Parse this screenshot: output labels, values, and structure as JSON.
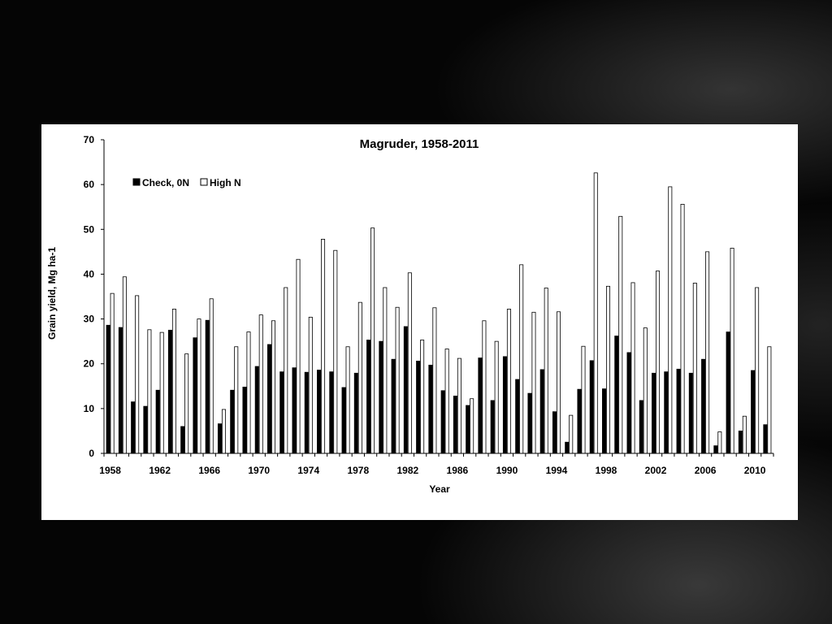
{
  "colors": {
    "background": "#000000",
    "card": "#ffffff",
    "check_fill": "#000000",
    "highn_fill": "#ffffff",
    "bar_stroke": "#000000"
  },
  "chart_data": {
    "type": "bar",
    "title": "Magruder, 1958-2011",
    "xlabel": "Year",
    "ylabel": "Grain yield, Mg ha-1",
    "ylim": [
      0,
      70
    ],
    "yticks": [
      0,
      10,
      20,
      30,
      40,
      50,
      60,
      70
    ],
    "xtick_labels": [
      "1958",
      "1962",
      "1966",
      "1970",
      "1974",
      "1978",
      "1982",
      "1986",
      "1990",
      "1994",
      "1998",
      "2002",
      "2006",
      "2010"
    ],
    "legend_position": "top-left",
    "grid": false,
    "categories": [
      1958,
      1959,
      1960,
      1961,
      1962,
      1963,
      1964,
      1965,
      1966,
      1967,
      1968,
      1969,
      1970,
      1971,
      1972,
      1973,
      1974,
      1975,
      1976,
      1977,
      1978,
      1979,
      1980,
      1981,
      1982,
      1983,
      1984,
      1985,
      1986,
      1987,
      1988,
      1989,
      1990,
      1991,
      1992,
      1993,
      1994,
      1995,
      1996,
      1997,
      1998,
      1999,
      2000,
      2001,
      2002,
      2003,
      2004,
      2005,
      2006,
      2007,
      2008,
      2009,
      2010,
      2011
    ],
    "series": [
      {
        "name": "Check, 0N",
        "values": [
          28.6,
          28.1,
          11.5,
          10.5,
          14.1,
          27.5,
          6.0,
          25.8,
          29.7,
          6.6,
          14.1,
          14.8,
          19.4,
          24.3,
          18.2,
          19.1,
          18.1,
          18.6,
          18.2,
          14.7,
          17.9,
          25.3,
          25.0,
          21.0,
          28.3,
          20.6,
          19.7,
          14.0,
          12.8,
          10.7,
          21.3,
          11.8,
          21.6,
          16.5,
          13.4,
          18.7,
          9.3,
          2.5,
          14.3,
          20.7,
          14.4,
          26.2,
          22.5,
          11.8,
          17.9,
          18.2,
          18.8,
          17.9,
          21.0,
          1.7,
          27.1,
          5.0,
          18.5,
          6.4
        ]
      },
      {
        "name": "High N",
        "values": [
          35.7,
          39.4,
          35.2,
          27.6,
          27.0,
          32.2,
          22.2,
          30.0,
          34.5,
          9.8,
          23.8,
          27.1,
          30.9,
          29.6,
          37.0,
          43.3,
          30.4,
          47.8,
          45.3,
          23.8,
          33.7,
          50.3,
          37.0,
          32.6,
          40.3,
          25.3,
          32.5,
          23.3,
          21.2,
          12.2,
          29.6,
          25.0,
          32.2,
          42.1,
          31.5,
          36.9,
          31.6,
          8.5,
          23.9,
          62.6,
          37.3,
          52.9,
          38.1,
          28.0,
          40.7,
          59.5,
          55.6,
          38.0,
          45.0,
          4.8,
          45.8,
          8.3,
          37.0,
          23.8
        ]
      }
    ]
  }
}
